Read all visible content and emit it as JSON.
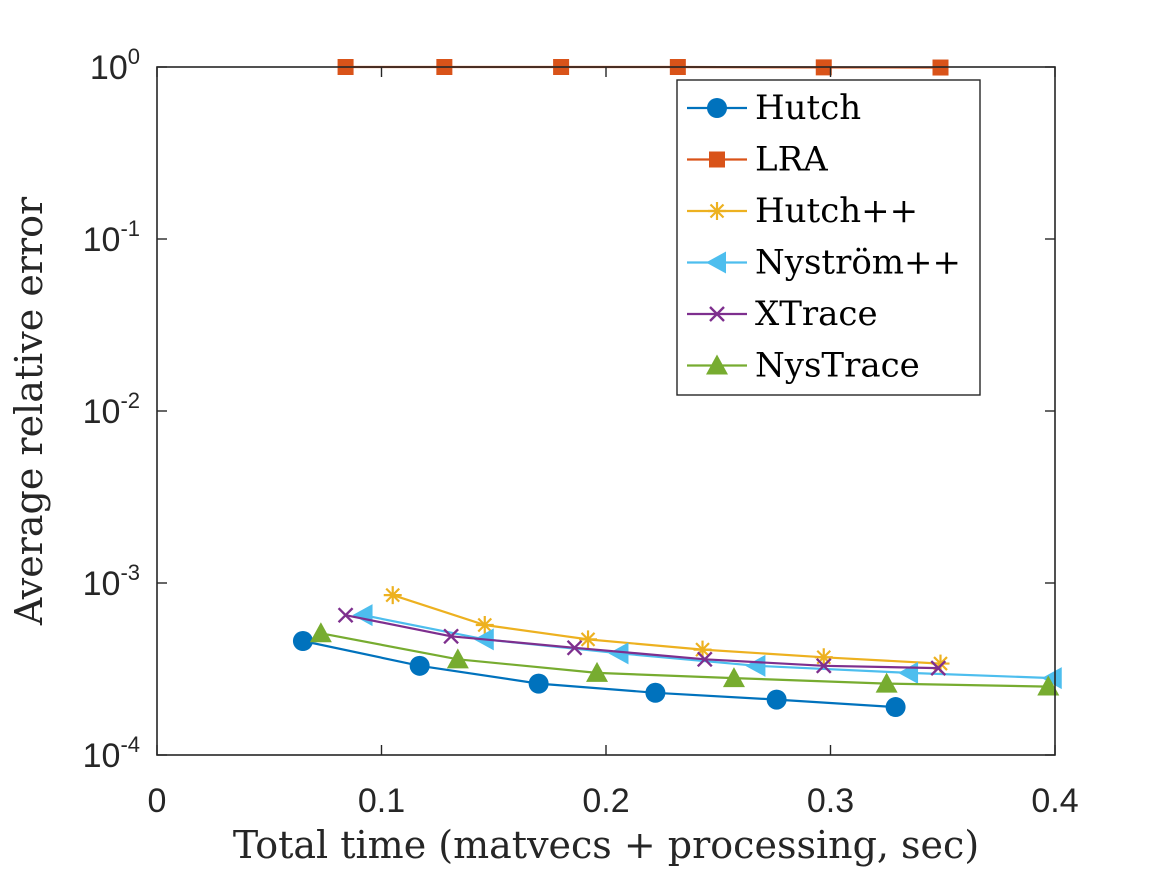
{
  "chart_data": {
    "type": "line",
    "title": "",
    "xlabel": "Total time (matvecs + processing, sec)",
    "ylabel": "Average relative error",
    "xlim": [
      0,
      0.4
    ],
    "ylim": [
      0.0001,
      1
    ],
    "yscale": "log",
    "grid": false,
    "legend_position": "top-right",
    "x_ticks": [
      {
        "value": 0,
        "label": "0"
      },
      {
        "value": 0.1,
        "label": "0.1"
      },
      {
        "value": 0.2,
        "label": "0.2"
      },
      {
        "value": 0.3,
        "label": "0.3"
      },
      {
        "value": 0.4,
        "label": "0.4"
      }
    ],
    "y_ticks": [
      {
        "value": 1,
        "base": "10",
        "exp": "0"
      },
      {
        "value": 0.1,
        "base": "10",
        "exp": "-1"
      },
      {
        "value": 0.01,
        "base": "10",
        "exp": "-2"
      },
      {
        "value": 0.001,
        "base": "10",
        "exp": "-3"
      },
      {
        "value": 0.0001,
        "base": "10",
        "exp": "-4"
      }
    ],
    "series": [
      {
        "name": "Hutch",
        "color": "#0072BD",
        "marker": "circle",
        "x": [
          0.065,
          0.117,
          0.17,
          0.222,
          0.276,
          0.329
        ],
        "y": [
          0.00046,
          0.00033,
          0.00026,
          0.00023,
          0.00021,
          0.00019
        ]
      },
      {
        "name": "LRA",
        "color": "#D95319",
        "marker": "square",
        "x": [
          0.084,
          0.128,
          0.18,
          0.232,
          0.297,
          0.349
        ],
        "y": [
          1.0,
          1.0,
          1.0,
          1.0,
          0.995,
          0.993
        ]
      },
      {
        "name": "Hutch++",
        "color": "#EDB120",
        "marker": "asterisk",
        "x": [
          0.105,
          0.146,
          0.192,
          0.243,
          0.297,
          0.349
        ],
        "y": [
          0.00085,
          0.00057,
          0.00047,
          0.00041,
          0.00037,
          0.00034
        ]
      },
      {
        "name": "Nyström++",
        "color": "#4DBEEE",
        "marker": "triangle-left",
        "x": [
          0.092,
          0.146,
          0.206,
          0.267,
          0.335,
          0.399
        ],
        "y": [
          0.00065,
          0.00047,
          0.00039,
          0.00033,
          0.0003,
          0.00028
        ]
      },
      {
        "name": "XTrace",
        "color": "#7E2F8E",
        "marker": "cross",
        "x": [
          0.084,
          0.131,
          0.186,
          0.244,
          0.297,
          0.348
        ],
        "y": [
          0.00065,
          0.00049,
          0.00042,
          0.00036,
          0.00033,
          0.00032
        ]
      },
      {
        "name": "NysTrace",
        "color": "#77AC30",
        "marker": "triangle-up",
        "x": [
          0.073,
          0.134,
          0.196,
          0.257,
          0.325,
          0.397
        ],
        "y": [
          0.00051,
          0.00036,
          0.0003,
          0.00028,
          0.00026,
          0.00025
        ]
      }
    ]
  }
}
